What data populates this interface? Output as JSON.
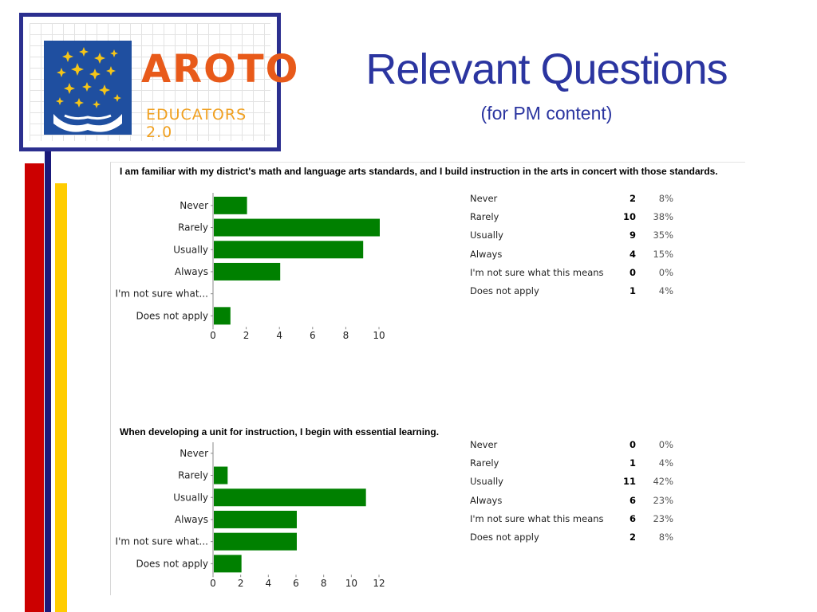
{
  "slide": {
    "title": "Relevant Questions",
    "subtitle": "(for PM content)"
  },
  "logo": {
    "wordmark": "AROTO",
    "subtitle": "EDUCATORS 2.0",
    "colors": {
      "border": "#2b2f8f",
      "emblem_bg": "#1f4fa0",
      "stars": "#f5c518",
      "wordmark": "#e85a1a",
      "sub": "#f0a020"
    }
  },
  "colors": {
    "bar": "#008000",
    "title": "#2b35a0",
    "stripe_red": "#cc0000",
    "stripe_navy": "#1a1a7a",
    "stripe_yellow": "#ffcc00"
  },
  "chart_data": [
    {
      "type": "bar",
      "orientation": "horizontal",
      "title": "I am familiar with my district's math and language arts standards, and I build instruction in the arts in concert with those standards.",
      "categories": [
        "Never",
        "Rarely",
        "Usually",
        "Always",
        "I'm not sure what...",
        "Does not apply"
      ],
      "values": [
        2,
        10,
        9,
        4,
        0,
        1
      ],
      "xlim": [
        0,
        10
      ],
      "xticks": [
        "0",
        "2",
        "4",
        "6",
        "8",
        "10"
      ],
      "grid": false,
      "table": [
        {
          "label": "Never",
          "count": "2",
          "pct": "8%"
        },
        {
          "label": "Rarely",
          "count": "10",
          "pct": "38%"
        },
        {
          "label": "Usually",
          "count": "9",
          "pct": "35%"
        },
        {
          "label": "Always",
          "count": "4",
          "pct": "15%"
        },
        {
          "label": "I'm not sure what this means",
          "count": "0",
          "pct": "0%"
        },
        {
          "label": "Does not apply",
          "count": "1",
          "pct": "4%"
        }
      ]
    },
    {
      "type": "bar",
      "orientation": "horizontal",
      "title": "When developing a unit for instruction, I begin with essential learning.",
      "categories": [
        "Never",
        "Rarely",
        "Usually",
        "Always",
        "I'm not sure what...",
        "Does not apply"
      ],
      "values": [
        0,
        1,
        11,
        6,
        6,
        2
      ],
      "xlim": [
        0,
        12
      ],
      "xticks": [
        "0",
        "2",
        "4",
        "6",
        "8",
        "10",
        "12"
      ],
      "grid": false,
      "table": [
        {
          "label": "Never",
          "count": "0",
          "pct": "0%"
        },
        {
          "label": "Rarely",
          "count": "1",
          "pct": "4%"
        },
        {
          "label": "Usually",
          "count": "11",
          "pct": "42%"
        },
        {
          "label": "Always",
          "count": "6",
          "pct": "23%"
        },
        {
          "label": "I'm not sure what this means",
          "count": "6",
          "pct": "23%"
        },
        {
          "label": "Does not apply",
          "count": "2",
          "pct": "8%"
        }
      ]
    }
  ]
}
